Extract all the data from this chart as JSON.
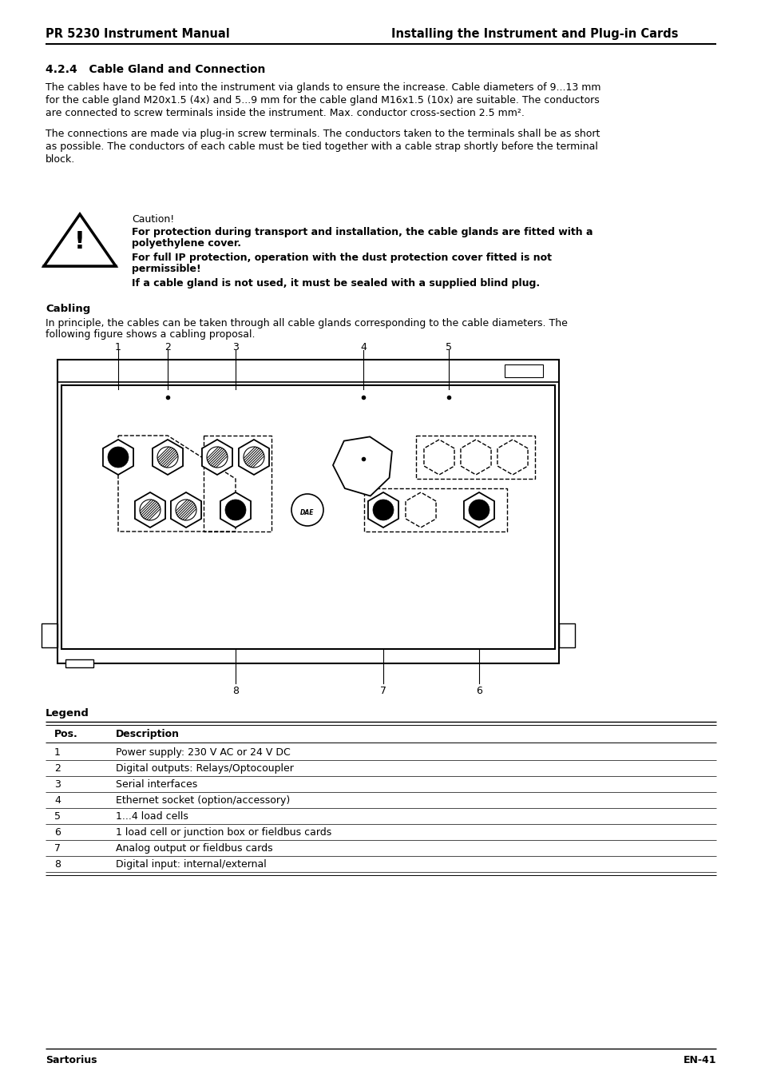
{
  "header_left": "PR 5230 Instrument Manual",
  "header_right": "Installing the Instrument and Plug-in Cards",
  "section_title": "4.2.4   Cable Gland and Connection",
  "para1_line1": "The cables have to be fed into the instrument via glands to ensure the increase. Cable diameters of 9...13 mm",
  "para1_line2": "for the cable gland M20x1.5 (4x) and 5...9 mm for the cable gland M16x1.5 (10x) are suitable. The conductors",
  "para1_line3": "are connected to screw terminals inside the instrument. Max. conductor cross-section 2.5 mm².",
  "para2_line1": "The connections are made via plug-in screw terminals. The conductors taken to the terminals shall be as short",
  "para2_line2": "as possible. The conductors of each cable must be tied together with a cable strap shortly before the terminal",
  "para2_line3": "block.",
  "caution_label": "Caution!",
  "caution1a": "For protection during transport and installation, the cable glands are fitted with a",
  "caution1b": "polyethylene cover.",
  "caution2a": "For full IP protection, operation with the dust protection cover fitted is not",
  "caution2b": "permissible!",
  "caution3": "If a cable gland is not used, it must be sealed with a supplied blind plug.",
  "cabling_title": "Cabling",
  "cabling_line1": "In principle, the cables can be taken through all cable glands corresponding to the cable diameters. The",
  "cabling_line2": "following figure shows a cabling proposal.",
  "legend_title": "Legend",
  "table_headers": [
    "Pos.",
    "Description"
  ],
  "table_rows": [
    [
      "1",
      "Power supply: 230 V AC or 24 V DC"
    ],
    [
      "2",
      "Digital outputs: Relays/Optocoupler"
    ],
    [
      "3",
      "Serial interfaces"
    ],
    [
      "4",
      "Ethernet socket (option/accessory)"
    ],
    [
      "5",
      "1...4 load cells"
    ],
    [
      "6",
      "1 load cell or junction box or fieldbus cards"
    ],
    [
      "7",
      "Analog output or fieldbus cards"
    ],
    [
      "8",
      "Digital input: internal/external"
    ]
  ],
  "footer_left": "Sartorius",
  "footer_right": "EN-41",
  "bg_color": "#ffffff"
}
